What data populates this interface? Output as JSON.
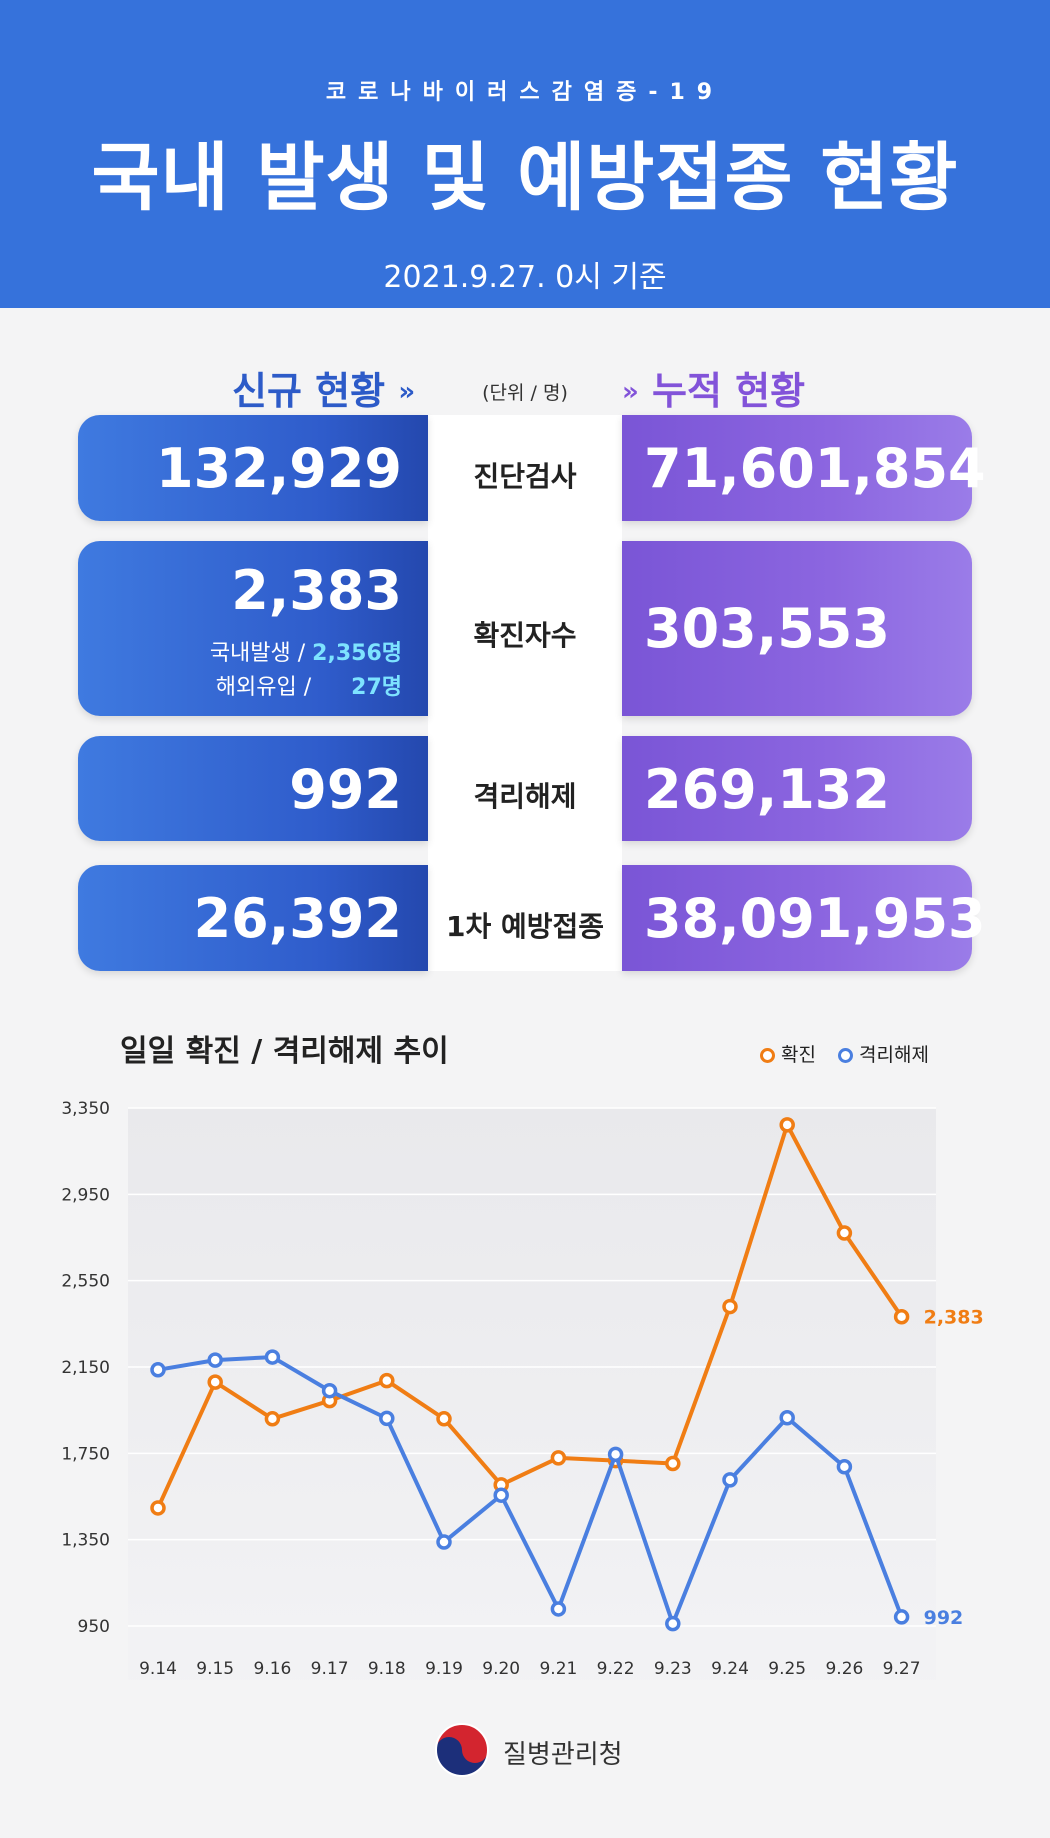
{
  "header": {
    "subtitle": "코로나바이러스감염증-19",
    "title": "국내 발생 및 예방접종 현황",
    "date": "2021.9.27. 0시 기준"
  },
  "columns": {
    "new_label": "신규 현황",
    "unit": "(단위 / 명)",
    "cumulative_label": "누적 현황"
  },
  "rows": [
    {
      "label": "진단검사",
      "new": "132,929",
      "cumulative": "71,601,854"
    },
    {
      "label": "확진자수",
      "new": "2,383",
      "cumulative": "303,553",
      "sub": [
        {
          "label": "국내발생 / ",
          "value": "2,356명"
        },
        {
          "label": "해외유입 /",
          "value": "27명"
        }
      ]
    },
    {
      "label": "격리해제",
      "new": "992",
      "cumulative": "269,132"
    },
    {
      "label": "1차 예방접종",
      "new": "26,392",
      "cumulative": "38,091,953"
    }
  ],
  "icons": {
    "chevron": "double-chevron-down-icon",
    "logo": "taegeuk-emblem-icon"
  },
  "colors": {
    "header": "#3672db",
    "new": "#2f5ccb",
    "cumulative": "#8253d9",
    "confirmed": "#f07d14",
    "released": "#4a7fe0"
  },
  "chart_data": {
    "type": "line",
    "title": "일일 확진 / 격리해제 추이",
    "categories": [
      "9.14",
      "9.15",
      "9.16",
      "9.17",
      "9.18",
      "9.19",
      "9.20",
      "9.21",
      "9.22",
      "9.23",
      "9.24",
      "9.25",
      "9.26",
      "9.27"
    ],
    "ylim": [
      950,
      3350
    ],
    "yticks": [
      "3,350",
      "2,950",
      "2,550",
      "2,150",
      "1,750",
      "1,350",
      "950"
    ],
    "series": [
      {
        "name": "확진",
        "color": "#f07d14",
        "values": [
          1497,
          2080,
          1910,
          1994,
          2087,
          1910,
          1604,
          1729,
          1716,
          1703,
          2430,
          3272,
          2771,
          2383
        ],
        "end_label": "2,383"
      },
      {
        "name": "격리해제",
        "color": "#4a7fe0",
        "values": [
          2137,
          2182,
          2196,
          2040,
          1912,
          1339,
          1556,
          1029,
          1745,
          961,
          1627,
          1915,
          1688,
          992
        ],
        "end_label": "992"
      }
    ],
    "grid": true,
    "legend": "top-right"
  },
  "footer": {
    "org": "질병관리청"
  }
}
